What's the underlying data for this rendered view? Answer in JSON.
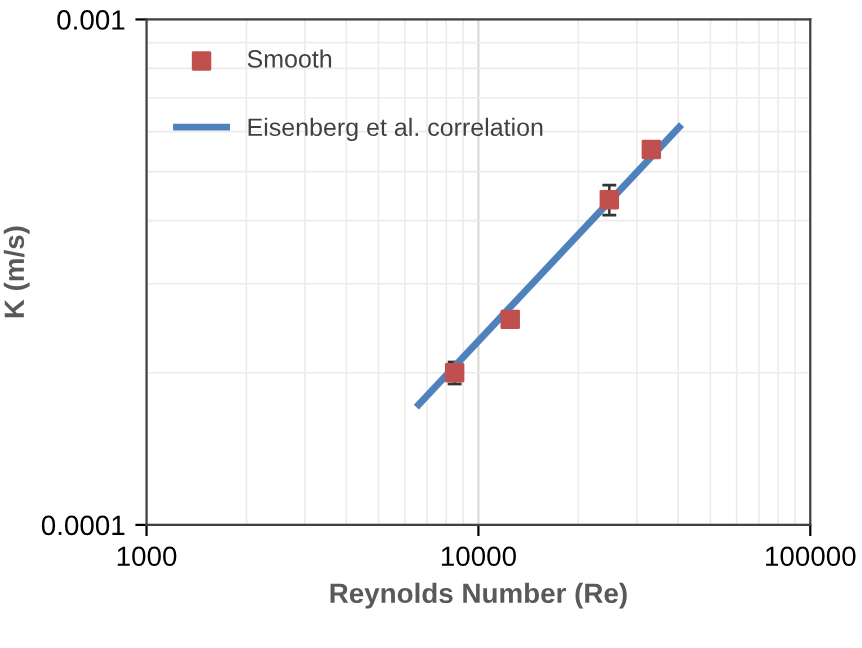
{
  "chart_data": {
    "type": "scatter",
    "xlabel": "Reynolds Number (Re)",
    "ylabel": "K (m/s)",
    "log": "xy",
    "xlim": [
      1000,
      100000
    ],
    "ylim": [
      0.0001,
      0.001
    ],
    "xticks": [
      1000,
      10000,
      100000
    ],
    "yticks": [
      0.0001,
      0.001
    ],
    "grid": true,
    "legend": "top left",
    "series": [
      {
        "name": "Smooth",
        "color": "#c0504d",
        "marker": "square",
        "x": [
          8480,
          12470,
          24800,
          33200
        ],
        "values": [
          0.0002,
          0.000255,
          0.00044,
          0.000553
        ],
        "errors": [
          1e-05,
          null,
          3e-05,
          2e-05
        ]
      },
      {
        "name": "Eisenberg et al. correlation",
        "type": "line",
        "color": "#4f81bd",
        "marker": "none",
        "line_style": "solid",
        "x": [
          6610,
          40270
        ],
        "values": [
          0.000173,
          0.000612
        ]
      }
    ]
  }
}
